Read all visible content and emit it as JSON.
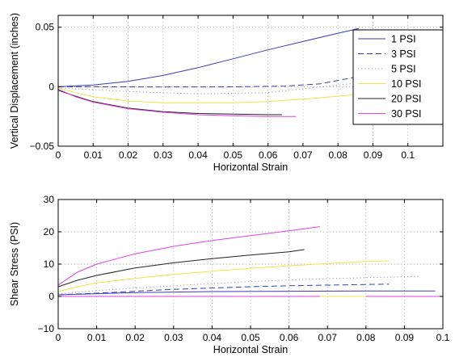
{
  "chart_data": [
    {
      "type": "line",
      "title": "",
      "xlabel": "Horizontal Strain",
      "ylabel": "Vertical Displacement (inches)",
      "xlim": [
        0,
        0.11
      ],
      "ylim": [
        -0.05,
        0.06
      ],
      "xticks": [
        0,
        0.01,
        0.02,
        0.03,
        0.04,
        0.05,
        0.06,
        0.07,
        0.08,
        0.09,
        0.1
      ],
      "xtick_labels": [
        "0",
        "0.01",
        "0.02",
        "0.03",
        "0.04",
        "0.05",
        "0.06",
        "0.07",
        "0.08",
        "0.09",
        "0.1"
      ],
      "yticks": [
        -0.05,
        0,
        0.05
      ],
      "ytick_labels": [
        "−0.05",
        "0",
        "0.05"
      ],
      "grid": true,
      "legend_position": "top-right",
      "series": [
        {
          "name": "1 PSI",
          "color": "#3b3bb8",
          "dash": "solid",
          "points": [
            [
              0,
              0
            ],
            [
              0.01,
              0.0015
            ],
            [
              0.02,
              0.0045
            ],
            [
              0.03,
              0.0095
            ],
            [
              0.04,
              0.016
            ],
            [
              0.05,
              0.0235
            ],
            [
              0.06,
              0.031
            ],
            [
              0.07,
              0.038
            ],
            [
              0.08,
              0.045
            ],
            [
              0.086,
              0.049
            ]
          ]
        },
        {
          "name": "3 PSI",
          "color": "#3b3bb8",
          "dash": "dashed",
          "points": [
            [
              0,
              0
            ],
            [
              0.01,
              0
            ],
            [
              0.03,
              -0.0002
            ],
            [
              0.05,
              -0.0001
            ],
            [
              0.065,
              0.0005
            ],
            [
              0.075,
              0.0025
            ],
            [
              0.085,
              0.008
            ]
          ]
        },
        {
          "name": "5 PSI",
          "color": "#9a9a9a",
          "dash": "dotted",
          "points": [
            [
              0,
              -0.001
            ],
            [
              0.02,
              -0.004
            ],
            [
              0.04,
              -0.006
            ],
            [
              0.06,
              -0.005
            ],
            [
              0.085,
              0.003
            ]
          ]
        },
        {
          "name": "10 PSI",
          "color": "#e8e84a",
          "dash": "solid",
          "points": [
            [
              0,
              -0.001
            ],
            [
              0.005,
              -0.005
            ],
            [
              0.01,
              -0.0085
            ],
            [
              0.02,
              -0.012
            ],
            [
              0.03,
              -0.0135
            ],
            [
              0.04,
              -0.0135
            ],
            [
              0.05,
              -0.0135
            ],
            [
              0.06,
              -0.0125
            ],
            [
              0.07,
              -0.0105
            ],
            [
              0.08,
              -0.008
            ],
            [
              0.086,
              -0.0065
            ]
          ]
        },
        {
          "name": "20 PSI",
          "color": "#222222",
          "dash": "solid",
          "points": [
            [
              0,
              -0.003
            ],
            [
              0.005,
              -0.008
            ],
            [
              0.01,
              -0.0125
            ],
            [
              0.02,
              -0.018
            ],
            [
              0.03,
              -0.021
            ],
            [
              0.04,
              -0.0225
            ],
            [
              0.05,
              -0.023
            ],
            [
              0.06,
              -0.0235
            ],
            [
              0.064,
              -0.0235
            ]
          ]
        },
        {
          "name": "30 PSI",
          "color": "#e040e0",
          "dash": "solid",
          "points": [
            [
              0,
              -0.002
            ],
            [
              0.005,
              -0.0085
            ],
            [
              0.01,
              -0.013
            ],
            [
              0.02,
              -0.0185
            ],
            [
              0.03,
              -0.0215
            ],
            [
              0.04,
              -0.0235
            ],
            [
              0.05,
              -0.0245
            ],
            [
              0.06,
              -0.025
            ],
            [
              0.068,
              -0.025
            ]
          ]
        }
      ]
    },
    {
      "type": "line",
      "title": "",
      "xlabel": "Horizontal Strain",
      "ylabel": "Shear Stress (PSI)",
      "xlim": [
        0,
        0.1
      ],
      "ylim": [
        -10,
        30
      ],
      "xticks": [
        0,
        0.01,
        0.02,
        0.03,
        0.04,
        0.05,
        0.06,
        0.07,
        0.08,
        0.09,
        0.1
      ],
      "xtick_labels": [
        "0",
        "0.01",
        "0.02",
        "0.03",
        "0.04",
        "0.05",
        "0.06",
        "0.07",
        "0.08",
        "0.09",
        "0.1"
      ],
      "yticks": [
        -10,
        0,
        10,
        20,
        30
      ],
      "ytick_labels": [
        "−10",
        "0",
        "10",
        "20",
        "30"
      ],
      "grid": true,
      "series": [
        {
          "name": "1 PSI",
          "color": "#3b3bb8",
          "dash": "solid",
          "points": [
            [
              0,
              0.5
            ],
            [
              0.02,
              1.2
            ],
            [
              0.04,
              1.5
            ],
            [
              0.06,
              1.6
            ],
            [
              0.08,
              1.7
            ],
            [
              0.098,
              1.7
            ]
          ]
        },
        {
          "name": "3 PSI",
          "color": "#3b3bb8",
          "dash": "dashed",
          "points": [
            [
              0,
              0.5
            ],
            [
              0.01,
              1.0
            ],
            [
              0.02,
              1.6
            ],
            [
              0.03,
              2.2
            ],
            [
              0.04,
              2.6
            ],
            [
              0.05,
              3.0
            ],
            [
              0.06,
              3.3
            ],
            [
              0.07,
              3.5
            ],
            [
              0.08,
              3.7
            ],
            [
              0.086,
              3.8
            ]
          ]
        },
        {
          "name": "5 PSI",
          "color": "#9a9a9a",
          "dash": "dotted",
          "points": [
            [
              0,
              0.8
            ],
            [
              0.01,
              1.8
            ],
            [
              0.02,
              2.6
            ],
            [
              0.03,
              3.3
            ],
            [
              0.04,
              4.0
            ],
            [
              0.05,
              4.6
            ],
            [
              0.06,
              5.1
            ],
            [
              0.07,
              5.5
            ],
            [
              0.08,
              5.8
            ],
            [
              0.094,
              6.2
            ]
          ]
        },
        {
          "name": "10 PSI",
          "color": "#e8e84a",
          "dash": "solid",
          "points": [
            [
              0,
              1.5
            ],
            [
              0.005,
              3.0
            ],
            [
              0.01,
              4.2
            ],
            [
              0.02,
              5.6
            ],
            [
              0.03,
              6.8
            ],
            [
              0.04,
              7.8
            ],
            [
              0.05,
              8.7
            ],
            [
              0.06,
              9.5
            ],
            [
              0.07,
              10.2
            ],
            [
              0.08,
              10.8
            ],
            [
              0.086,
              11.0
            ]
          ]
        },
        {
          "name": "20 PSI",
          "color": "#222222",
          "dash": "solid",
          "points": [
            [
              0,
              3.0
            ],
            [
              0.005,
              5.0
            ],
            [
              0.01,
              6.5
            ],
            [
              0.02,
              8.8
            ],
            [
              0.03,
              10.4
            ],
            [
              0.04,
              11.7
            ],
            [
              0.05,
              12.8
            ],
            [
              0.06,
              13.8
            ],
            [
              0.064,
              14.5
            ]
          ]
        },
        {
          "name": "30 PSI",
          "color": "#e040e0",
          "dash": "solid",
          "points": [
            [
              0,
              3.5
            ],
            [
              0.005,
              7.5
            ],
            [
              0.01,
              10.0
            ],
            [
              0.02,
              13.2
            ],
            [
              0.03,
              15.5
            ],
            [
              0.04,
              17.3
            ],
            [
              0.05,
              18.8
            ],
            [
              0.06,
              20.3
            ],
            [
              0.068,
              21.6
            ]
          ]
        },
        {
          "name": "",
          "color": "#e040e0",
          "dash": "solid",
          "points": [
            [
              0,
              0
            ],
            [
              0.1,
              0
            ]
          ]
        },
        {
          "name": "",
          "color": "#e8e84a",
          "dash": "solid",
          "points": [
            [
              0.068,
              0
            ],
            [
              0.08,
              0
            ]
          ]
        }
      ]
    }
  ]
}
